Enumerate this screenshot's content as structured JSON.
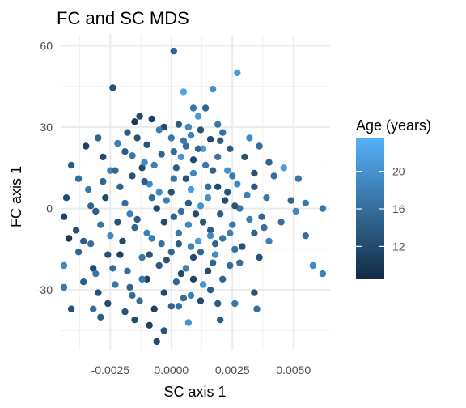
{
  "chart_data": {
    "type": "scatter",
    "title": "FC and SC MDS",
    "xlabel": "SC axis 1",
    "ylabel": "FC axis 1",
    "xlim": [
      -0.0045,
      0.0065
    ],
    "ylim": [
      -52,
      64
    ],
    "x_ticks": [
      -0.0025,
      0.0,
      0.0025,
      0.005
    ],
    "x_tick_labels": [
      "-0.0025",
      "0.0000",
      "0.0025",
      "0.0050"
    ],
    "y_ticks": [
      -30,
      0,
      30,
      60
    ],
    "y_tick_labels": [
      "-30",
      "0",
      "30",
      "60"
    ],
    "grid": true,
    "color": {
      "legend_title": "Age (years)",
      "range": [
        8.5,
        23.5
      ],
      "low_color": "#132B43",
      "high_color": "#56B1F7",
      "ticks": [
        12,
        16,
        20
      ],
      "tick_labels": [
        "12",
        "16",
        "20"
      ],
      "legend_position": "right"
    },
    "points": [
      [
        0.0001,
        58,
        15
      ],
      [
        0.0027,
        50,
        21
      ],
      [
        -0.0024,
        44.5,
        13
      ],
      [
        0.0005,
        43,
        22
      ],
      [
        0.0017,
        44,
        20
      ],
      [
        0.0009,
        37,
        17
      ],
      [
        0.0014,
        37,
        15
      ],
      [
        -0.0013,
        34,
        12
      ],
      [
        -0.0015,
        32,
        10
      ],
      [
        -0.0008,
        33,
        11
      ],
      [
        0.0011,
        34,
        21
      ],
      [
        -0.0003,
        30,
        12
      ],
      [
        0.0003,
        31,
        14
      ],
      [
        0.0007,
        30,
        19
      ],
      [
        0.0019,
        31,
        17
      ],
      [
        -0.0018,
        28,
        14
      ],
      [
        -0.0005,
        29,
        18
      ],
      [
        0.0012,
        29,
        13
      ],
      [
        0.0021,
        28,
        16
      ],
      [
        -0.003,
        26,
        15
      ],
      [
        0.0,
        26,
        17
      ],
      [
        0.0016,
        25.5,
        12
      ],
      [
        0.0032,
        26,
        19
      ],
      [
        -0.0035,
        23,
        11
      ],
      [
        -0.0022,
        24,
        18
      ],
      [
        -0.001,
        23.5,
        13
      ],
      [
        0.0006,
        23,
        16
      ],
      [
        0.0013,
        22,
        21
      ],
      [
        0.0024,
        22,
        14
      ],
      [
        0.0036,
        23,
        16
      ],
      [
        -0.0041,
        16,
        14
      ],
      [
        -0.0028,
        19,
        12
      ],
      [
        -0.0016,
        19.5,
        17
      ],
      [
        -0.0004,
        20,
        15
      ],
      [
        0.0004,
        19,
        20
      ],
      [
        0.0019,
        19,
        17
      ],
      [
        0.003,
        19,
        13
      ],
      [
        0.004,
        17,
        15
      ],
      [
        0.0046,
        15,
        21
      ],
      [
        -0.0038,
        11,
        16
      ],
      [
        -0.0025,
        14,
        18
      ],
      [
        -0.0012,
        15,
        12
      ],
      [
        0.0002,
        15,
        14
      ],
      [
        0.0009,
        13,
        19
      ],
      [
        0.0017,
        14,
        15
      ],
      [
        0.0025,
        12,
        17
      ],
      [
        0.0034,
        13,
        13
      ],
      [
        0.0042,
        12,
        16
      ],
      [
        0.0052,
        11,
        17
      ],
      [
        -0.0043,
        4,
        12
      ],
      [
        -0.0034,
        7,
        17
      ],
      [
        -0.0021,
        8,
        15
      ],
      [
        -0.0009,
        9,
        19
      ],
      [
        0.0,
        6,
        13
      ],
      [
        0.0008,
        7,
        21
      ],
      [
        0.0015,
        8,
        16
      ],
      [
        0.0023,
        6,
        13
      ],
      [
        0.0031,
        5,
        18
      ],
      [
        0.0039,
        4,
        17
      ],
      [
        0.0049,
        3,
        15
      ],
      [
        0.0055,
        2,
        17
      ],
      [
        -0.0044,
        -3,
        11
      ],
      [
        -0.0031,
        -1,
        14
      ],
      [
        -0.0017,
        -2,
        18
      ],
      [
        -0.0006,
        0,
        12
      ],
      [
        0.0004,
        -1,
        16
      ],
      [
        0.0012,
        1,
        20
      ],
      [
        0.002,
        -2,
        14
      ],
      [
        0.0028,
        0,
        17
      ],
      [
        0.0037,
        -3,
        15
      ],
      [
        0.0051,
        -1,
        19
      ],
      [
        0.0062,
        0,
        17
      ],
      [
        -0.0039,
        -8,
        13
      ],
      [
        -0.0029,
        -6,
        17
      ],
      [
        -0.0015,
        -7,
        15
      ],
      [
        -0.0003,
        -5,
        12
      ],
      [
        0.0007,
        -6,
        19
      ],
      [
        0.0016,
        -8,
        14
      ],
      [
        0.0025,
        -6,
        17
      ],
      [
        0.0034,
        -9,
        15
      ],
      [
        0.0045,
        -5,
        16
      ],
      [
        -0.0042,
        -11,
        10
      ],
      [
        -0.0033,
        -13,
        16
      ],
      [
        -0.002,
        -12,
        12
      ],
      [
        -0.0008,
        -11,
        18
      ],
      [
        0.0003,
        -13,
        14
      ],
      [
        0.0011,
        -12,
        21
      ],
      [
        0.0021,
        -11,
        17
      ],
      [
        0.0029,
        -14,
        13
      ],
      [
        0.004,
        -12,
        18
      ],
      [
        0.0055,
        -10,
        16
      ],
      [
        -0.0038,
        -16,
        15
      ],
      [
        -0.0026,
        -17,
        13
      ],
      [
        -0.0012,
        -18,
        17
      ],
      [
        0.0,
        -16,
        15
      ],
      [
        0.0009,
        -18,
        12
      ],
      [
        0.0018,
        -17,
        19
      ],
      [
        0.0026,
        -15,
        16
      ],
      [
        0.0036,
        -18,
        13
      ],
      [
        -0.0044,
        -21,
        19
      ],
      [
        -0.0032,
        -22,
        12
      ],
      [
        -0.0018,
        -23,
        16
      ],
      [
        -0.0005,
        -21,
        14
      ],
      [
        0.0006,
        -22,
        18
      ],
      [
        0.0015,
        -23,
        12
      ],
      [
        0.0024,
        -21,
        16
      ],
      [
        -0.0036,
        -27,
        14
      ],
      [
        -0.0023,
        -28,
        17
      ],
      [
        -0.001,
        -26,
        11
      ],
      [
        0.0002,
        -27,
        15
      ],
      [
        0.0013,
        -28,
        20
      ],
      [
        0.0021,
        -26,
        15
      ],
      [
        0.0058,
        -21,
        19
      ],
      [
        0.0062,
        -24,
        18
      ],
      [
        -0.0044,
        -29,
        17
      ],
      [
        -0.003,
        -31,
        13
      ],
      [
        -0.0016,
        -32,
        16
      ],
      [
        -0.0003,
        -31,
        12
      ],
      [
        0.0008,
        -32,
        18
      ],
      [
        0.0016,
        -30,
        14
      ],
      [
        0.0034,
        -31,
        13
      ],
      [
        -0.0026,
        -35,
        12
      ],
      [
        -0.0013,
        -34,
        16
      ],
      [
        0.0,
        -36,
        15
      ],
      [
        0.0012,
        -34,
        12
      ],
      [
        0.0026,
        -35,
        17
      ],
      [
        -0.0041,
        -37,
        13
      ],
      [
        -0.0032,
        -37,
        16
      ],
      [
        -0.0019,
        -38,
        13
      ],
      [
        -0.0007,
        -37,
        11
      ],
      [
        0.0003,
        -36,
        16
      ],
      [
        0.0019,
        -35,
        14
      ],
      [
        0.0035,
        -37,
        16
      ],
      [
        -0.0029,
        -40,
        14
      ],
      [
        -0.0015,
        -41,
        12
      ],
      [
        -0.0009,
        -43,
        11
      ],
      [
        0.0007,
        -42,
        20
      ],
      [
        0.002,
        -41,
        14
      ],
      [
        -0.0006,
        -49,
        12
      ],
      [
        -0.0003,
        -45,
        13
      ],
      [
        -0.0025,
        -10,
        19
      ],
      [
        -0.0014,
        -4,
        14
      ],
      [
        -0.0002,
        3,
        18
      ],
      [
        0.0006,
        11,
        13
      ],
      [
        0.0014,
        16,
        17
      ],
      [
        0.0022,
        3,
        12
      ],
      [
        0.0032,
        -4,
        18
      ],
      [
        -0.0019,
        2,
        16
      ],
      [
        -0.0011,
        10,
        14
      ],
      [
        0.0003,
        -9,
        17
      ],
      [
        0.0018,
        -13,
        15
      ],
      [
        -0.0027,
        4,
        12
      ],
      [
        -0.0007,
        16,
        18
      ],
      [
        0.0011,
        22,
        15
      ],
      [
        0.0027,
        9,
        19
      ],
      [
        -0.0021,
        -17,
        11
      ],
      [
        -0.0004,
        -13,
        16
      ],
      [
        0.0013,
        -5,
        13
      ],
      [
        0.0024,
        -9,
        18
      ],
      [
        -0.0033,
        1,
        15
      ],
      [
        -0.0016,
        12,
        13
      ],
      [
        0.0005,
        25,
        17
      ],
      [
        0.0015,
        4,
        20
      ],
      [
        0.0034,
        8,
        14
      ],
      [
        -0.0024,
        -22,
        16
      ],
      [
        -0.0009,
        -17,
        13
      ],
      [
        0.0008,
        -14,
        18
      ],
      [
        0.0017,
        -20,
        15
      ],
      [
        -0.0036,
        -12,
        14
      ],
      [
        -0.0012,
        -26,
        17
      ],
      [
        0.0004,
        -24,
        12
      ],
      [
        -0.0019,
        21,
        14
      ],
      [
        0.0001,
        21,
        16
      ],
      [
        0.0009,
        18,
        12
      ],
      [
        0.0023,
        14,
        20
      ],
      [
        -0.0028,
        10,
        15
      ],
      [
        -0.0005,
        6,
        19
      ],
      [
        0.0019,
        8,
        12
      ],
      [
        0.0038,
        -7,
        16
      ],
      [
        -0.0022,
        -5,
        13
      ],
      [
        -0.001,
        -9,
        18
      ],
      [
        0.0001,
        -3,
        15
      ],
      [
        0.001,
        -2,
        12
      ],
      [
        0.0028,
        -20,
        16
      ],
      [
        -0.0014,
        26,
        13
      ],
      [
        0.0008,
        27,
        18
      ],
      [
        0.002,
        25,
        14
      ],
      [
        -0.0031,
        -24,
        17
      ],
      [
        -0.0017,
        -29,
        15
      ],
      [
        0.0009,
        -26,
        11
      ],
      [
        0.0001,
        11,
        17
      ],
      [
        0.0007,
        2,
        14
      ],
      [
        -0.0008,
        4,
        16
      ],
      [
        0.0016,
        -10,
        19
      ],
      [
        -0.0002,
        -19,
        13
      ],
      [
        0.0012,
        -16,
        15
      ],
      [
        -0.0011,
        17,
        19
      ],
      [
        0.0026,
        1,
        13
      ],
      [
        -0.0023,
        14,
        15
      ],
      [
        0.0005,
        -33,
        16
      ]
    ]
  }
}
